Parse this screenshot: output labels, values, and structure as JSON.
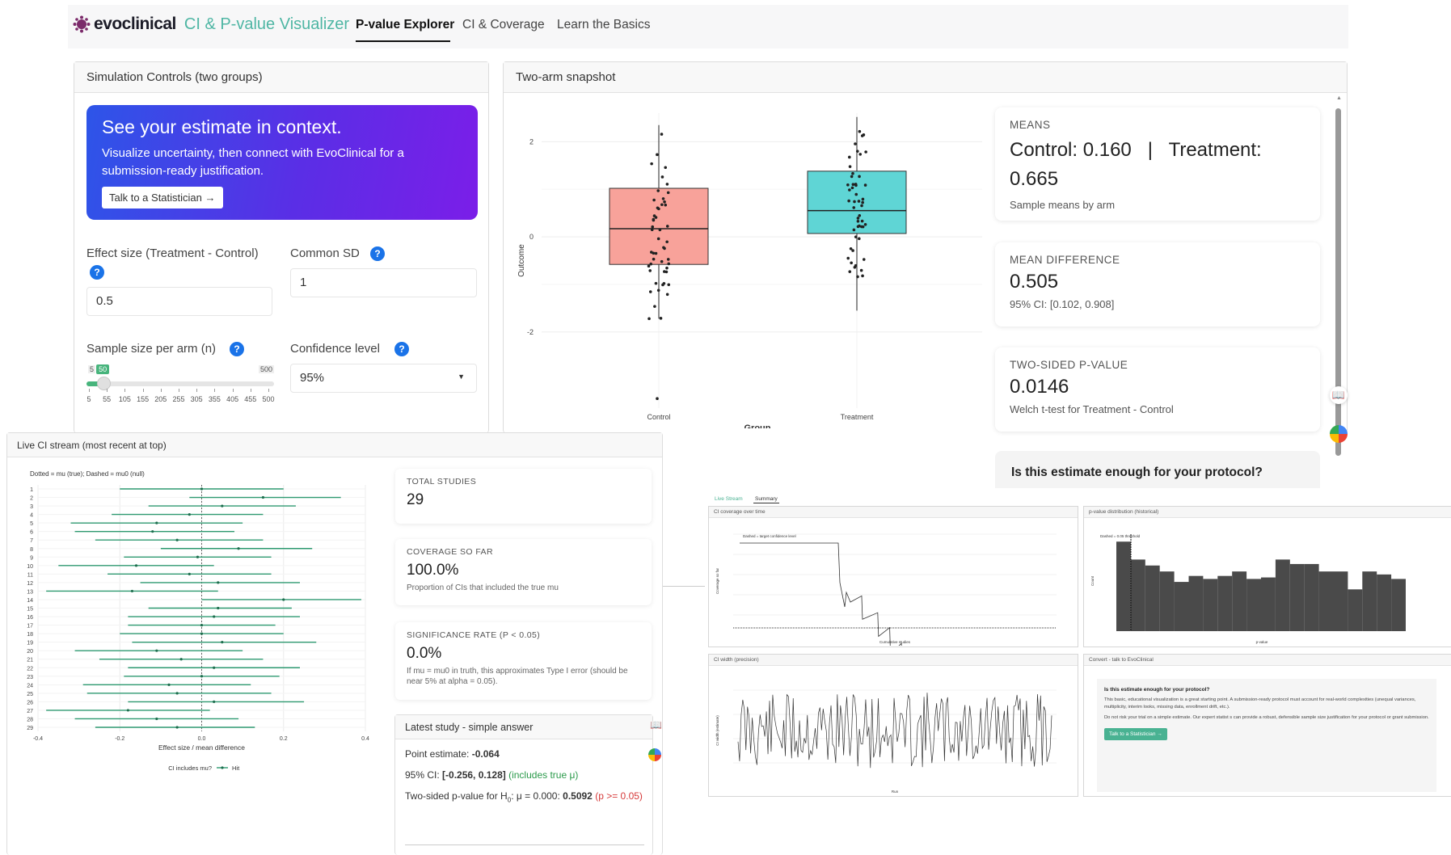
{
  "nav": {
    "brand": "evoclinical",
    "subtitle": "CI & P-value Visualizer",
    "tabs": [
      "P-value Explorer",
      "CI & Coverage",
      "Learn the Basics"
    ]
  },
  "sim": {
    "title": "Simulation Controls (two groups)",
    "promo_title": "See your estimate in context.",
    "promo_text": "Visualize uncertainty, then connect with EvoClinical for a submission-ready justification.",
    "promo_button": "Talk to a Statistician →",
    "effect_label": "Effect size (Treatment - Control)",
    "effect_value": "0.5",
    "sd_label": "Common SD",
    "sd_value": "1",
    "n_label": "Sample size per arm (n)",
    "n_min": "5",
    "n_max": "500",
    "n_value": "50",
    "n_fraction": 0.091,
    "n_ticks": [
      "5",
      "55",
      "105",
      "155",
      "205",
      "255",
      "305",
      "355",
      "405",
      "455",
      "500"
    ],
    "conf_label": "Confidence level",
    "conf_value": "95%"
  },
  "snapshot": {
    "title": "Two-arm snapshot",
    "means_title": "MEANS",
    "means_value": "Control: 0.160   |   Treatment: 0.665",
    "means_sub": "Sample means by arm",
    "diff_title": "MEAN DIFFERENCE",
    "diff_value": "0.505",
    "diff_sub": "95% CI: [0.102, 0.908]",
    "p_title": "TWO-SIDED P-VALUE",
    "p_value": "0.0146",
    "p_sub": "Welch t-test for Treatment - Control",
    "protocol_q": "Is this estimate enough for your protocol?",
    "box_colors": {
      "control": "#f8a29a",
      "treatment": "#5fd5d5"
    }
  },
  "live": {
    "title": "Live CI stream (most recent at top)",
    "legend_note": "Dotted = mu (true); Dashed = mu0 (null)",
    "xlabel": "Effect size / mean difference",
    "legend_title": "CI includes mu?",
    "legend_item": "Hit",
    "total_title": "TOTAL STUDIES",
    "total_value": "29",
    "cov_title": "COVERAGE SO FAR",
    "cov_value": "100.0%",
    "cov_sub": "Proportion of CIs that included the true mu",
    "sig_title": "SIGNIFICANCE RATE (P < 0.05)",
    "sig_value": "0.0%",
    "sig_sub": "If mu = mu0 in truth, this approximates Type I error (should be near 5% at alpha = 0.05).",
    "latest_title": "Latest study - simple answer",
    "point_label": "Point estimate:",
    "point_value": "-0.064",
    "ci_label": "95% CI:",
    "ci_value": "[-0.256, 0.128]",
    "ci_note": "(includes true μ)",
    "pv_label": "Two-sided p-value for H",
    "pv_label2": ": μ = 0.000:",
    "pv_value": "0.5092",
    "pv_note": "(p >= 0.05)"
  },
  "chart_data": [
    {
      "type": "box",
      "xlabel": "Group",
      "ylabel": "Outcome",
      "categories": [
        "Control",
        "Treatment"
      ],
      "ylim": [
        -3.6,
        2.6
      ],
      "yticks": [
        -2,
        0,
        2
      ],
      "boxes": [
        {
          "name": "Control",
          "q1": -0.58,
          "median": 0.17,
          "q3": 1.02,
          "whisker_low": -1.72,
          "whisker_high": 2.35
        },
        {
          "name": "Treatment",
          "q1": 0.07,
          "median": 0.55,
          "q3": 1.38,
          "whisker_low": -1.55,
          "whisker_high": 2.52
        }
      ]
    },
    {
      "type": "forest",
      "xlabel": "Effect size / mean difference",
      "xlim": [
        -0.4,
        0.4
      ],
      "xticks": [
        -0.4,
        -0.2,
        0.0,
        0.2,
        0.4
      ],
      "studies": [
        {
          "id": 1,
          "est": 0.0,
          "lo": -0.2,
          "hi": 0.2
        },
        {
          "id": 2,
          "est": 0.15,
          "lo": -0.03,
          "hi": 0.34
        },
        {
          "id": 3,
          "est": 0.05,
          "lo": -0.13,
          "hi": 0.23
        },
        {
          "id": 4,
          "est": -0.03,
          "lo": -0.22,
          "hi": 0.15
        },
        {
          "id": 5,
          "est": -0.11,
          "lo": -0.32,
          "hi": 0.1
        },
        {
          "id": 6,
          "est": -0.12,
          "lo": -0.31,
          "hi": 0.08
        },
        {
          "id": 7,
          "est": -0.06,
          "lo": -0.26,
          "hi": 0.15
        },
        {
          "id": 8,
          "est": 0.09,
          "lo": -0.1,
          "hi": 0.27
        },
        {
          "id": 9,
          "est": -0.01,
          "lo": -0.19,
          "hi": 0.17
        },
        {
          "id": 10,
          "est": -0.16,
          "lo": -0.35,
          "hi": 0.03
        },
        {
          "id": 11,
          "est": -0.03,
          "lo": -0.23,
          "hi": 0.17
        },
        {
          "id": 12,
          "est": 0.04,
          "lo": -0.15,
          "hi": 0.24
        },
        {
          "id": 13,
          "est": -0.17,
          "lo": -0.38,
          "hi": 0.04
        },
        {
          "id": 14,
          "est": 0.2,
          "lo": 0.0,
          "hi": 0.39
        },
        {
          "id": 15,
          "est": 0.04,
          "lo": -0.13,
          "hi": 0.22
        },
        {
          "id": 16,
          "est": 0.03,
          "lo": -0.18,
          "hi": 0.24
        },
        {
          "id": 17,
          "est": 0.0,
          "lo": -0.18,
          "hi": 0.18
        },
        {
          "id": 18,
          "est": 0.0,
          "lo": -0.2,
          "hi": 0.2
        },
        {
          "id": 19,
          "est": 0.05,
          "lo": -0.17,
          "hi": 0.28
        },
        {
          "id": 20,
          "est": -0.11,
          "lo": -0.31,
          "hi": 0.1
        },
        {
          "id": 21,
          "est": -0.05,
          "lo": -0.25,
          "hi": 0.15
        },
        {
          "id": 22,
          "est": 0.03,
          "lo": -0.18,
          "hi": 0.24
        },
        {
          "id": 23,
          "est": 0.0,
          "lo": -0.19,
          "hi": 0.19
        },
        {
          "id": 24,
          "est": -0.08,
          "lo": -0.29,
          "hi": 0.12
        },
        {
          "id": 25,
          "est": -0.06,
          "lo": -0.28,
          "hi": 0.17
        },
        {
          "id": 26,
          "est": 0.03,
          "lo": -0.18,
          "hi": 0.25
        },
        {
          "id": 27,
          "est": -0.18,
          "lo": -0.38,
          "hi": 0.02
        },
        {
          "id": 28,
          "est": -0.11,
          "lo": -0.31,
          "hi": 0.09
        },
        {
          "id": 29,
          "est": -0.06,
          "lo": -0.26,
          "hi": 0.13
        }
      ]
    }
  ],
  "collage": {
    "tabs": [
      "Live Stream",
      "Summary"
    ],
    "cov_title": "CI coverage over time",
    "cov_note": "Dashed = target confidence level",
    "cov_ylabel": "Coverage so far",
    "cov_xlabel": "Cumulative studies",
    "pd_title": "p-value distribution (historical)",
    "pd_note": "Dashed = 0.05 threshold",
    "pd_ylabel": "Count",
    "pd_xlabel": "p-value",
    "w_title": "CI width (precision)",
    "w_ylabel": "CI width (estimate)",
    "w_xlabel": "Run",
    "conv_title": "Convert - talk to EvoClinical",
    "conv_q": "Is this estimate enough for your protocol?",
    "conv_p1": "This basic, educational visualization is a great starting point. A submission-ready protocol must account for real-world complexities (unequal variances, multiplicity, interim looks, missing data, enrollment drift, etc.).",
    "conv_p2": "Do not risk your trial on a simple estimate. Our expert statist    s can provide a robust, defensible sample size justification for your protocol or grant submission.",
    "conv_button": "Talk to a Statistician →",
    "hist_counts": [
      60,
      48,
      44,
      40,
      33,
      37,
      35,
      37,
      40,
      35,
      36,
      48,
      45,
      45,
      40,
      40,
      28,
      40,
      38,
      35
    ]
  }
}
